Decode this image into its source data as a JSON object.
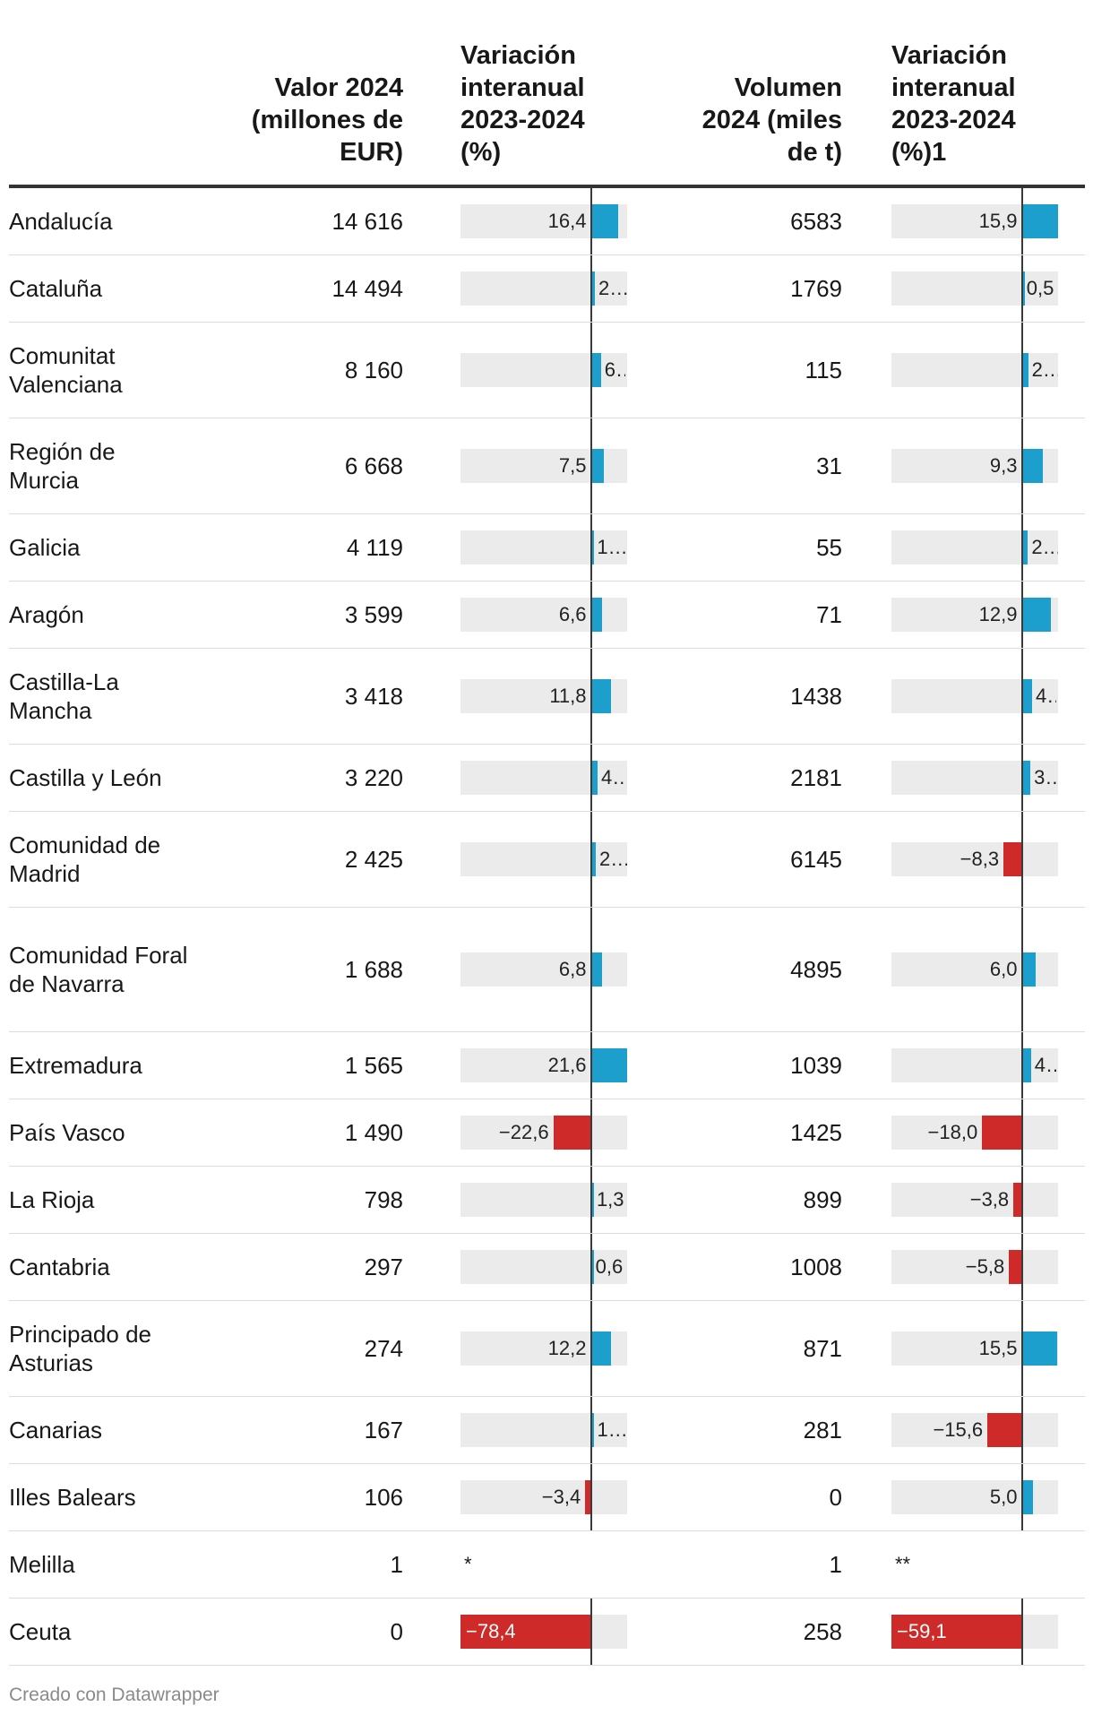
{
  "headers": {
    "valor": "Valor 2024\n(millones de\nEUR)",
    "var1": "Variación\ninteranual\n2023-2024\n(%)",
    "volumen": "Volumen\n2024 (miles\nde t)",
    "var2": "Variación\ninteranual\n2023-2024\n(%)1"
  },
  "colors": {
    "positive": "#1d9fce",
    "negative": "#cd2a29",
    "bar_bg": "#ebebeb",
    "axis": "#3a3a3a"
  },
  "chart_data": {
    "type": "table",
    "columns": [
      "",
      "Valor 2024 (millones de EUR)",
      "Variación interanual 2023-2024 (%)",
      "Volumen 2024 (miles de t)",
      "Variación interanual 2023-2024 (%)1"
    ],
    "bar_columns": {
      "var1": {
        "min": -78.4,
        "max": 21.6
      },
      "var2": {
        "min": -59.1,
        "max": 15.9
      }
    },
    "rows": [
      {
        "region": "Andalucía",
        "valor": "14 616",
        "var1": 16.4,
        "var1_label": "16,4",
        "volumen": "6583",
        "var2": 15.9,
        "var2_label": "15,9"
      },
      {
        "region": "Cataluña",
        "valor": "14 494",
        "var1": 2.4,
        "var1_label": "2…",
        "volumen": "1769",
        "var2": 0.5,
        "var2_label": "0,5"
      },
      {
        "region": "Comunitat Valenciana",
        "valor": "8 160",
        "var1": 6.0,
        "var1_label": "6,0",
        "volumen": "115",
        "var2": 2.8,
        "var2_label": "2…"
      },
      {
        "region": "Región de Murcia",
        "valor": "6 668",
        "var1": 7.5,
        "var1_label": "7,5",
        "volumen": "31",
        "var2": 9.3,
        "var2_label": "9,3"
      },
      {
        "region": "Galicia",
        "valor": "4 119",
        "var1": 1.5,
        "var1_label": "1…",
        "volumen": "55",
        "var2": 2.7,
        "var2_label": "2…"
      },
      {
        "region": "Aragón",
        "valor": "3 599",
        "var1": 6.6,
        "var1_label": "6,6",
        "volumen": "71",
        "var2": 12.9,
        "var2_label": "12,9"
      },
      {
        "region": "Castilla-La Mancha",
        "valor": "3 418",
        "var1": 11.8,
        "var1_label": "11,8",
        "volumen": "1438",
        "var2": 4.5,
        "var2_label": "4,5"
      },
      {
        "region": "Castilla y León",
        "valor": "3 220",
        "var1": 4.0,
        "var1_label": "4…",
        "volumen": "2181",
        "var2": 3.8,
        "var2_label": "3,8"
      },
      {
        "region": "Comunidad de Madrid",
        "valor": "2 425",
        "var1": 2.9,
        "var1_label": "2…",
        "volumen": "6145",
        "var2": -8.3,
        "var2_label": "−8,3"
      },
      {
        "region": "Comunidad Foral de Navarra",
        "valor": "1 688",
        "var1": 6.8,
        "var1_label": "6,8",
        "volumen": "4895",
        "var2": 6.0,
        "var2_label": "6,0"
      },
      {
        "region": "Extremadura",
        "valor": "1 565",
        "var1": 21.6,
        "var1_label": "21,6",
        "volumen": "1039",
        "var2": 4.0,
        "var2_label": "4,0"
      },
      {
        "region": "País Vasco",
        "valor": "1 490",
        "var1": -22.6,
        "var1_label": "−22,6",
        "volumen": "1425",
        "var2": -18.0,
        "var2_label": "−18,0"
      },
      {
        "region": "La Rioja",
        "valor": "798",
        "var1": 1.3,
        "var1_label": "1,3",
        "volumen": "899",
        "var2": -3.8,
        "var2_label": "−3,8"
      },
      {
        "region": "Cantabria",
        "valor": "297",
        "var1": 0.6,
        "var1_label": "0,6",
        "volumen": "1008",
        "var2": -5.8,
        "var2_label": "−5,8"
      },
      {
        "region": "Principado de Asturias",
        "valor": "274",
        "var1": 12.2,
        "var1_label": "12,2",
        "volumen": "871",
        "var2": 15.5,
        "var2_label": "15,5"
      },
      {
        "region": "Canarias",
        "valor": "167",
        "var1": 1.6,
        "var1_label": "1…",
        "volumen": "281",
        "var2": -15.6,
        "var2_label": "−15,6"
      },
      {
        "region": "Illes Balears",
        "valor": "106",
        "var1": -3.4,
        "var1_label": "−3,4",
        "volumen": "0",
        "var2": 5.0,
        "var2_label": "5,0"
      },
      {
        "region": "Melilla",
        "valor": "1",
        "var1": null,
        "var1_label": "*",
        "volumen": "1",
        "var2": null,
        "var2_label": "**"
      },
      {
        "region": "Ceuta",
        "valor": "0",
        "var1": -78.4,
        "var1_label": "−78,4",
        "volumen": "258",
        "var2": -59.1,
        "var2_label": "−59,1"
      }
    ]
  },
  "footer": {
    "credit": "Creado con Datawrapper"
  }
}
